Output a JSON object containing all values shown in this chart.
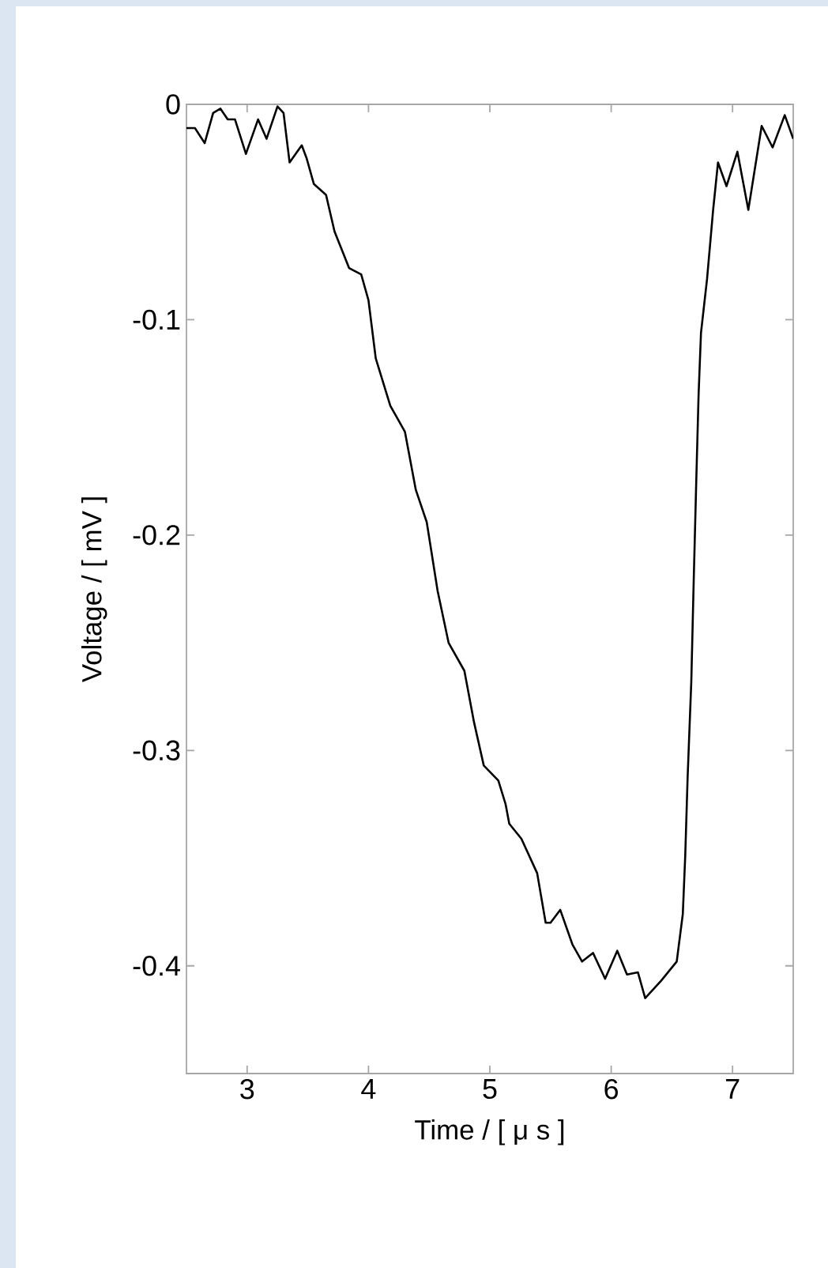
{
  "chart_data": {
    "type": "line",
    "xlabel": "Time / [ μ s ]",
    "ylabel": "Voltage / [ mV ]",
    "xlim": [
      2.5,
      7.5
    ],
    "ylim": [
      -0.45,
      0
    ],
    "xticks": [
      3,
      4,
      5,
      6,
      7
    ],
    "yticks": [
      -0.4,
      -0.3,
      -0.2,
      -0.1,
      0
    ],
    "grid": false,
    "marker": "none",
    "line_style": "solid",
    "series": [
      {
        "color": "#000000",
        "x": [
          2.5,
          2.57,
          2.65,
          2.72,
          2.78,
          2.84,
          2.9,
          2.99,
          3.09,
          3.16,
          3.25,
          3.3,
          3.35,
          3.45,
          3.49,
          3.55,
          3.65,
          3.72,
          3.84,
          3.94,
          4.0,
          4.06,
          4.18,
          4.3,
          4.39,
          4.48,
          4.57,
          4.66,
          4.79,
          4.87,
          4.95,
          5.07,
          5.13,
          5.16,
          5.26,
          5.39,
          5.46,
          5.5,
          5.58,
          5.68,
          5.76,
          5.85,
          5.95,
          6.05,
          6.13,
          6.22,
          6.28,
          6.41,
          6.54,
          6.59,
          6.61,
          6.63,
          6.66,
          6.68,
          6.7,
          6.72,
          6.74,
          6.79,
          6.84,
          6.88,
          6.95,
          7.04,
          7.13,
          7.24,
          7.33,
          7.43,
          7.5
        ],
        "values": [
          -0.011,
          -0.011,
          -0.018,
          -0.004,
          -0.002,
          -0.007,
          -0.007,
          -0.023,
          -0.007,
          -0.016,
          -0.001,
          -0.004,
          -0.027,
          -0.019,
          -0.025,
          -0.037,
          -0.042,
          -0.059,
          -0.076,
          -0.079,
          -0.091,
          -0.118,
          -0.14,
          -0.152,
          -0.179,
          -0.194,
          -0.226,
          -0.25,
          -0.263,
          -0.287,
          -0.307,
          -0.314,
          -0.325,
          -0.334,
          -0.341,
          -0.357,
          -0.38,
          -0.38,
          -0.374,
          -0.39,
          -0.398,
          -0.394,
          -0.406,
          -0.393,
          -0.404,
          -0.403,
          -0.415,
          -0.407,
          -0.398,
          -0.376,
          -0.349,
          -0.312,
          -0.268,
          -0.221,
          -0.177,
          -0.135,
          -0.106,
          -0.081,
          -0.049,
          -0.027,
          -0.038,
          -0.022,
          -0.049,
          -0.01,
          -0.02,
          -0.005,
          -0.016
        ]
      }
    ]
  }
}
